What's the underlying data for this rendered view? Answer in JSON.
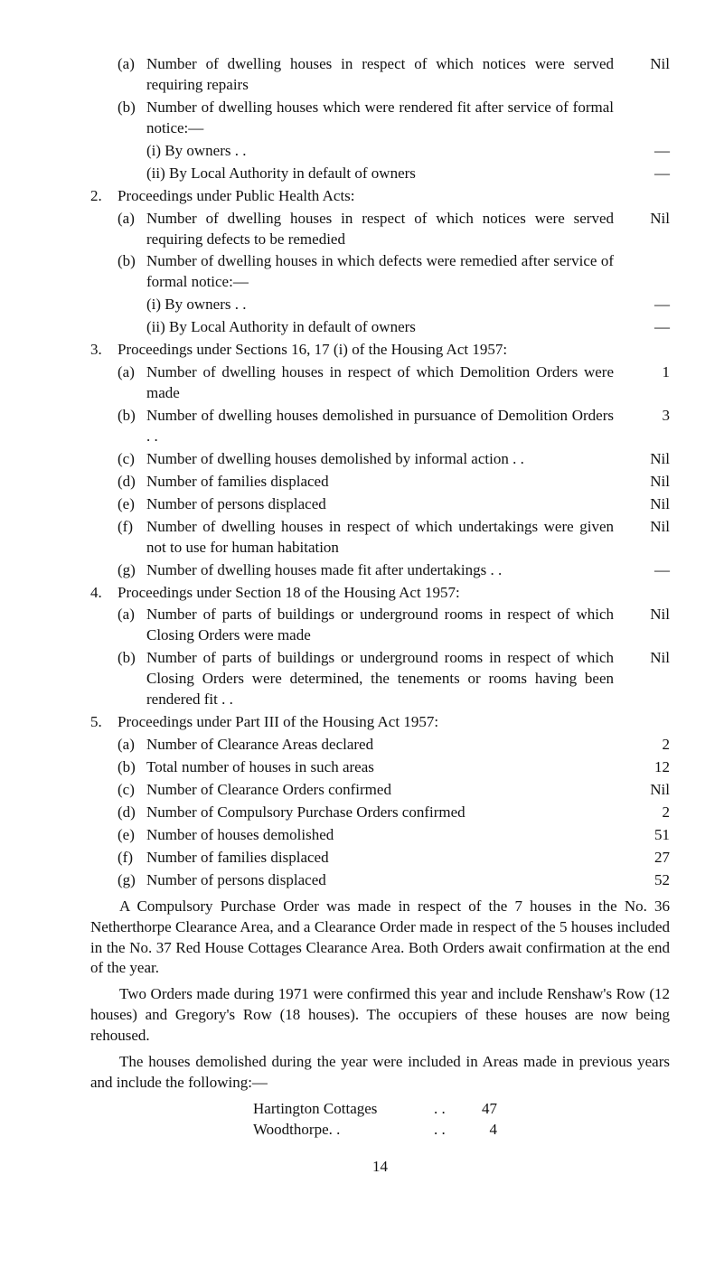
{
  "items": {
    "i1a": {
      "letter": "(a)",
      "text": "Number of dwelling houses in respect of which notices were served requiring repairs",
      "val": "Nil"
    },
    "i1b": {
      "letter": "(b)",
      "text": "Number of dwelling houses which were rendered fit after service of formal notice:—",
      "val": ""
    },
    "i1bi": {
      "text": "(i) By owners . .",
      "val": "—"
    },
    "i1bii": {
      "text": "(ii) By Local Authority in default of owners",
      "val": "—"
    },
    "n2": "2.",
    "i2h": {
      "text": "Proceedings under Public Health Acts:",
      "val": ""
    },
    "i2a": {
      "letter": "(a)",
      "text": "Number of dwelling houses in respect of which notices were served requiring defects to be remedied",
      "val": "Nil"
    },
    "i2b": {
      "letter": "(b)",
      "text": "Number of dwelling houses in which defects were remedied after service of formal notice:—",
      "val": ""
    },
    "i2bi": {
      "text": "(i) By owners . .",
      "val": "—"
    },
    "i2bii": {
      "text": "(ii) By Local Authority in default of owners",
      "val": "—"
    },
    "n3": "3.",
    "i3h": {
      "text": "Proceedings under Sections 16, 17 (i) of the Housing Act 1957:",
      "val": ""
    },
    "i3a": {
      "letter": "(a)",
      "text": "Number of dwelling houses in respect of which Demolition Orders were made",
      "val": "1"
    },
    "i3b": {
      "letter": "(b)",
      "text": "Number of dwelling houses demolished in pursuance of Demolition Orders . .",
      "val": "3"
    },
    "i3c": {
      "letter": "(c)",
      "text": "Number of dwelling houses demolished by informal action . .",
      "val": "Nil"
    },
    "i3d": {
      "letter": "(d)",
      "text": "Number of families displaced",
      "val": "Nil"
    },
    "i3e": {
      "letter": "(e)",
      "text": "Number of persons displaced",
      "val": "Nil"
    },
    "i3f": {
      "letter": "(f)",
      "text": "Number of dwelling houses in respect of which undertakings were given not to use for human habitation",
      "val": "Nil"
    },
    "i3g": {
      "letter": "(g)",
      "text": "Number of dwelling houses made fit after undertakings . .",
      "val": "—"
    },
    "n4": "4.",
    "i4h": {
      "text": "Proceedings under Section 18 of the Housing Act 1957:",
      "val": ""
    },
    "i4a": {
      "letter": "(a)",
      "text": "Number of parts of buildings or underground rooms in respect of which Closing Orders were made",
      "val": "Nil"
    },
    "i4b": {
      "letter": "(b)",
      "text": "Number of parts of buildings or underground rooms in respect of which Closing Orders were determined, the tenements or rooms having been rendered fit . .",
      "val": "Nil"
    },
    "n5": "5.",
    "i5h": {
      "text": "Proceedings under Part III of the Housing Act 1957:",
      "val": ""
    },
    "i5a": {
      "letter": "(a)",
      "text": "Number of Clearance Areas declared",
      "val": "2"
    },
    "i5b": {
      "letter": "(b)",
      "text": "Total number of houses in such areas",
      "val": "12"
    },
    "i5c": {
      "letter": "(c)",
      "text": "Number of Clearance Orders confirmed",
      "val": "Nil"
    },
    "i5d": {
      "letter": "(d)",
      "text": "Number of Compulsory Purchase Orders confirmed",
      "val": "2"
    },
    "i5e": {
      "letter": "(e)",
      "text": "Number of houses demolished",
      "val": "51"
    },
    "i5f": {
      "letter": "(f)",
      "text": "Number of families displaced",
      "val": "27"
    },
    "i5g": {
      "letter": "(g)",
      "text": "Number of persons displaced",
      "val": "52"
    }
  },
  "paras": {
    "p1": "A Compulsory Purchase Order was made in respect of the 7 houses in the No. 36 Netherthorpe Clearance Area, and a Clearance Order made in respect of the 5 houses included in the No. 37 Red House Cottages Clearance Area. Both Orders await confirmation at the end of the year.",
    "p2": "Two Orders made during 1971 were confirmed this year and include Renshaw's Row (12 houses) and Gregory's Row (18 houses). The occupiers of these houses are now being rehoused.",
    "p3": "The houses demolished during the year were included in Areas made in previous years and include the following:—"
  },
  "table": {
    "r1": {
      "label": "Hartington Cottages",
      "dots": ". .",
      "val": "47"
    },
    "r2": {
      "label": "Woodthorpe. .",
      "dots": ". .",
      "val": "4"
    }
  },
  "page": "14"
}
